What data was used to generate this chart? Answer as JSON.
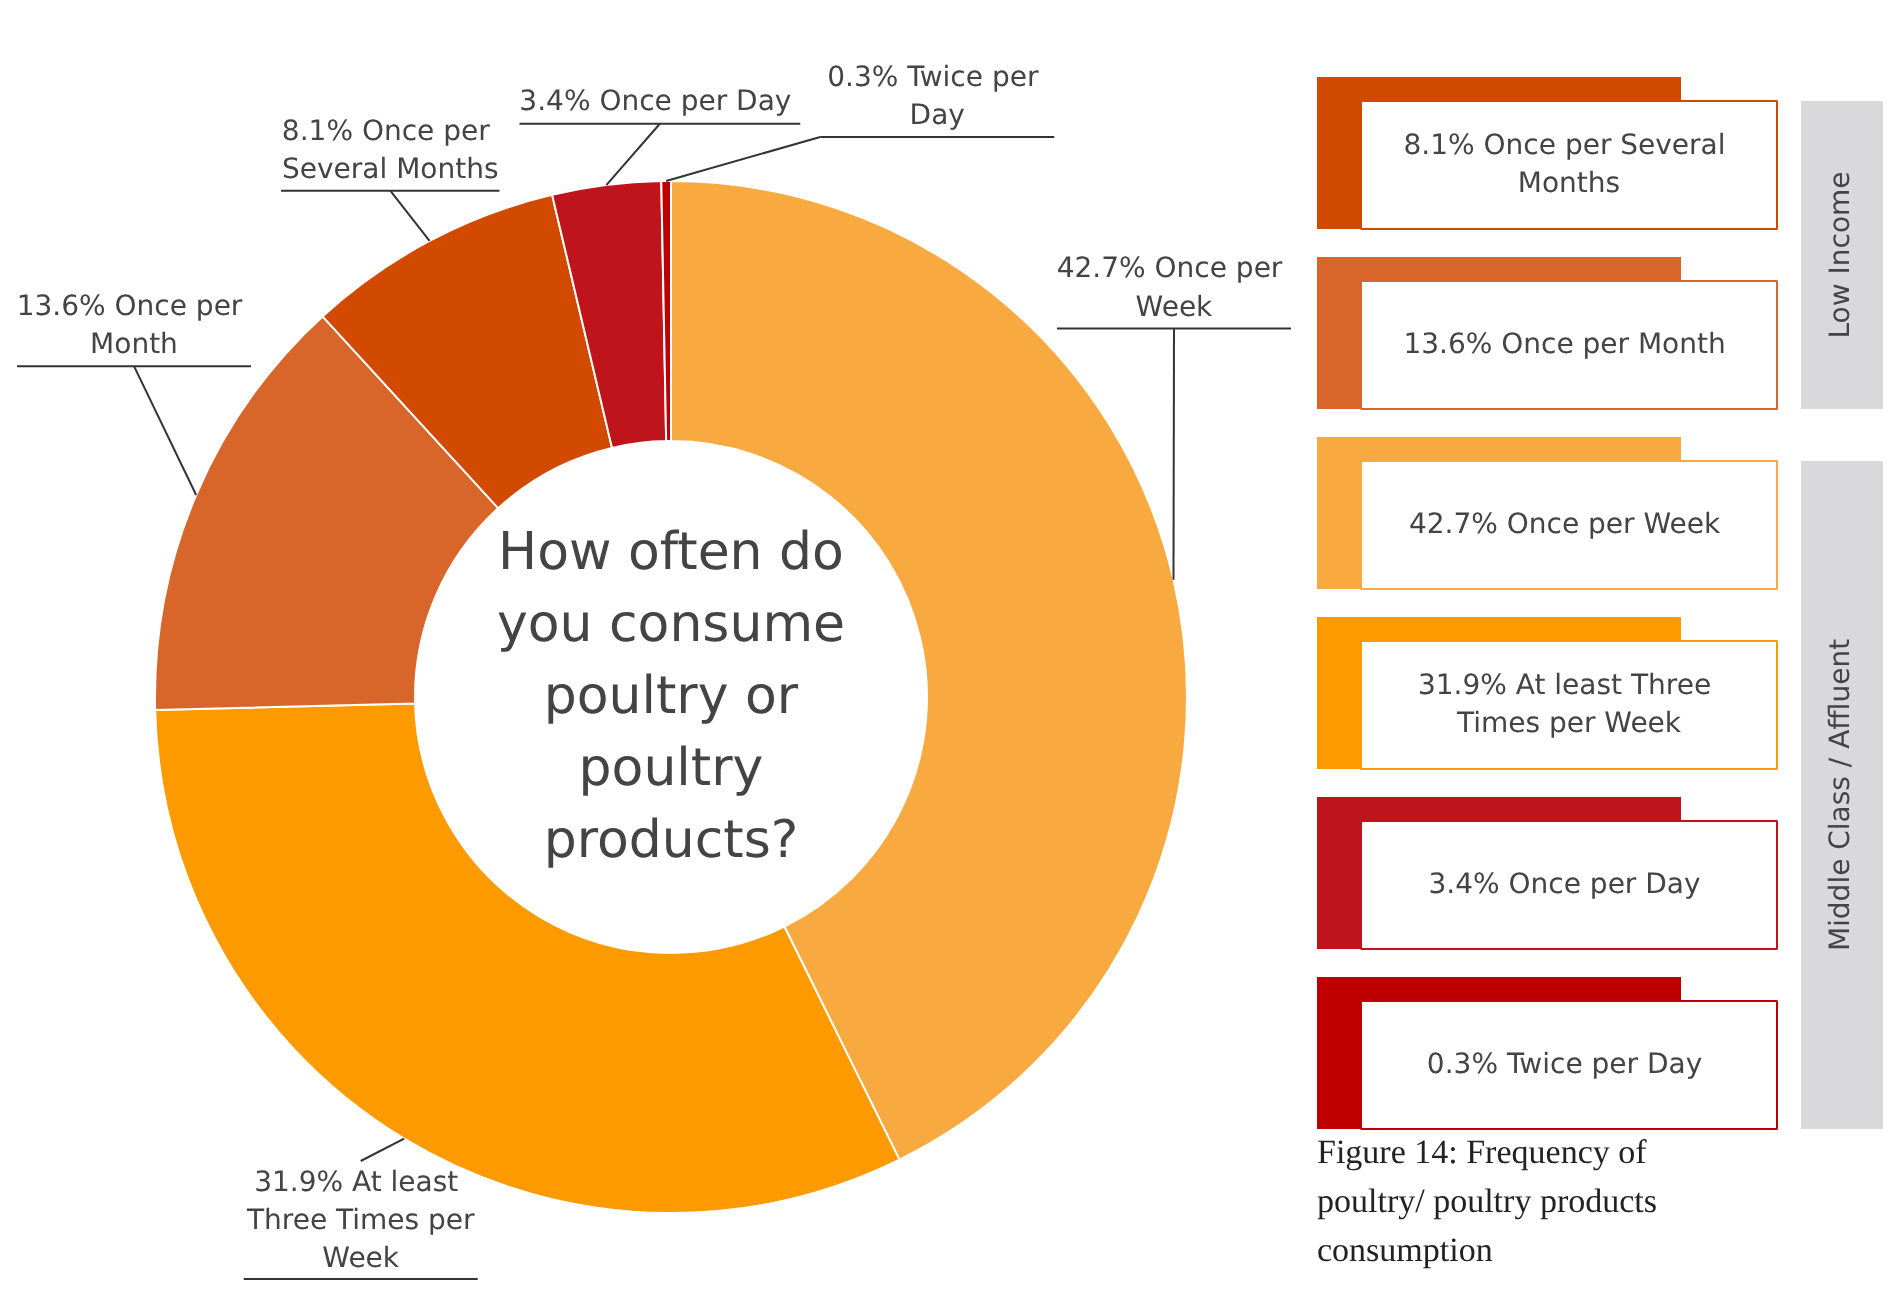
{
  "chart_data": [
    {
      "type": "donut",
      "title": "How often do you consume poultry or poultry products?",
      "categories": [
        "Once per Week",
        "At least Three Times per Week",
        "Once per Month",
        "Once per Several Months",
        "Once per Day",
        "Twice per Day"
      ],
      "values": [
        42.7,
        31.9,
        13.6,
        8.1,
        3.4,
        0.3
      ],
      "value_labels": [
        "42.7%",
        "31.9%",
        "13.6%",
        "8.1%",
        "3.4%",
        "0.3%"
      ],
      "colors": [
        "#f8a940",
        "#fd9a00",
        "#d8662a",
        "#d24a00",
        "#c0141c",
        "#bf0000"
      ],
      "annotations": [
        "Figure 14:  Frequency of poultry/ poultry products consumption"
      ]
    },
    {
      "type": "other",
      "categories": [
        "8.1%  Once per Several Months",
        "13.6%  Once per Month",
        "42.7%  Once per Week",
        "31.9%  At least Three Times per Week",
        "3.4%  Once per Day",
        "0.3%  Twice per Day"
      ],
      "colors": [
        "#d24a00",
        "#d8662a",
        "#f8a940",
        "#fd9a00",
        "#c0141c",
        "#bf0000"
      ],
      "annotations": [
        "Low Income",
        "Middle Class / Affluent"
      ]
    }
  ]
}
